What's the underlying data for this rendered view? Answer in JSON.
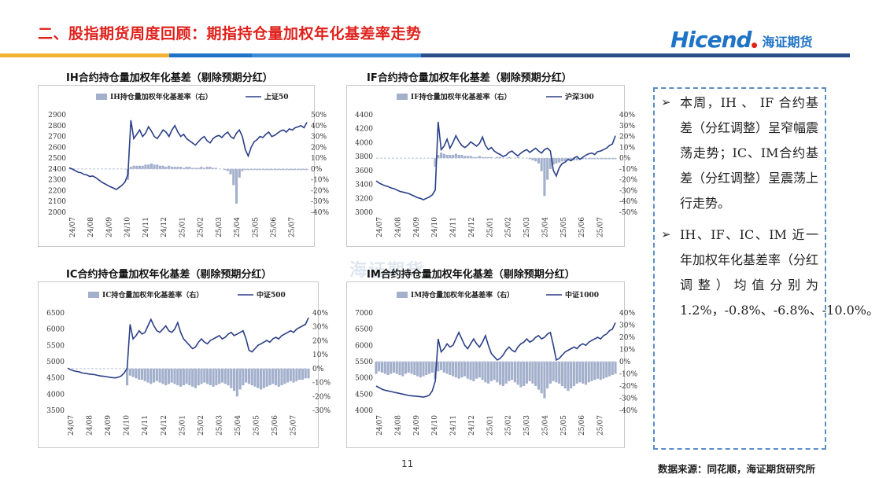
{
  "header": {
    "title": "二、股指期货周度回顾：期指持仓量加权年化基差率走势",
    "logo_text": "Hicend",
    "logo_cn": "海证期货",
    "bar_colors": [
      "#f2b233",
      "#1f73c7",
      "#1f73c7",
      "#2a4f8a"
    ]
  },
  "watermark": "海证期货",
  "notes": {
    "items": [
      "本周，IH 、 IF 合约基差（分红调整）呈窄幅震荡走势；IC、IM合约基差（分红调整）呈震荡上行走势。",
      "IH、IF、IC、IM 近一年加权年化基差率（分红调整）均值分别为 1.2%，-0.8%、-6.8%、-10.0%。"
    ],
    "bullet": "➢"
  },
  "footer": {
    "page": "11",
    "source": "数据来源：同花顺，海证期货研究所"
  },
  "chart_data": [
    {
      "type": "line",
      "panel_title": "IH合约持仓量加权年化基差（剔除预期分红）",
      "bar_legend": "IH持仓量加权年化基差率（右）",
      "line_legend": "上证50",
      "x": [
        "24/07",
        "24/08",
        "24/09",
        "24/10",
        "24/11",
        "24/12",
        "25/01",
        "25/02",
        "25/03",
        "25/04",
        "25/05",
        "25/06",
        "25/07"
      ],
      "ylim": [
        2000,
        2900
      ],
      "yticks": [
        "2000",
        "2100",
        "2200",
        "2300",
        "2400",
        "2500",
        "2600",
        "2700",
        "2800",
        "2900"
      ],
      "y2lim": [
        -40,
        50
      ],
      "y2ticks": [
        "-40%",
        "-30%",
        "-20%",
        "-10%",
        "0%",
        "10%",
        "20%",
        "30%",
        "40%",
        "50%"
      ],
      "line": [
        2410,
        2400,
        2385,
        2370,
        2365,
        2350,
        2345,
        2330,
        2335,
        2320,
        2300,
        2280,
        2265,
        2250,
        2235,
        2225,
        2210,
        2230,
        2250,
        2280,
        2350,
        2850,
        2680,
        2720,
        2760,
        2700,
        2730,
        2790,
        2750,
        2700,
        2680,
        2720,
        2760,
        2740,
        2700,
        2760,
        2800,
        2740,
        2700,
        2720,
        2680,
        2660,
        2640,
        2620,
        2650,
        2680,
        2700,
        2660,
        2640,
        2680,
        2700,
        2710,
        2690,
        2720,
        2740,
        2700,
        2680,
        2730,
        2760,
        2700,
        2580,
        2520,
        2600,
        2650,
        2670,
        2700,
        2690,
        2720,
        2740,
        2700,
        2710,
        2730,
        2750,
        2760,
        2740,
        2770,
        2760,
        2780,
        2790,
        2800,
        2780,
        2830
      ],
      "line_color": "#2a3f87",
      "bars": [
        0,
        0,
        0,
        0,
        0,
        0,
        0,
        0,
        0,
        0,
        0,
        0,
        0,
        0,
        0,
        0,
        0,
        0,
        0,
        0,
        -10,
        2,
        3,
        3,
        3,
        3,
        4,
        4,
        5,
        4,
        4,
        3,
        3,
        2,
        3,
        2,
        2,
        2,
        2,
        1,
        2,
        2,
        1,
        1,
        1,
        2,
        1,
        2,
        2,
        1,
        1,
        0,
        0,
        -1,
        -2,
        -5,
        -15,
        -32,
        -8,
        -2,
        -1,
        -1,
        -1,
        -1,
        -1,
        -1,
        -1,
        -1,
        -1,
        -1,
        -1,
        -1,
        -1,
        -1,
        -1,
        -1,
        -1,
        -1,
        -1,
        -1,
        -1,
        -1
      ],
      "bar_color": "#a3b0cc"
    },
    {
      "type": "line",
      "panel_title": "IF合约持仓量加权年化基差（剔除预期分红）",
      "bar_legend": "IF持仓量加权年化基差率（右）",
      "line_legend": "沪深300",
      "x": [
        "24/07",
        "24/08",
        "24/09",
        "24/10",
        "24/11",
        "24/12",
        "25/01",
        "25/02",
        "25/03",
        "25/04",
        "25/05",
        "25/06",
        "25/07"
      ],
      "ylim": [
        3000,
        4400
      ],
      "yticks": [
        "3000",
        "3200",
        "3400",
        "3600",
        "3800",
        "4000",
        "4200",
        "4400"
      ],
      "y2lim": [
        -50,
        40
      ],
      "y2ticks": [
        "-50%",
        "-40%",
        "-30%",
        "-20%",
        "-10%",
        "0%",
        "10%",
        "20%",
        "30%",
        "40%"
      ],
      "line": [
        3450,
        3420,
        3400,
        3380,
        3370,
        3350,
        3340,
        3320,
        3300,
        3290,
        3280,
        3270,
        3250,
        3230,
        3210,
        3200,
        3180,
        3200,
        3220,
        3250,
        3320,
        4300,
        3900,
        3950,
        4050,
        3920,
        4000,
        4100,
        4020,
        3960,
        3930,
        3960,
        4010,
        3980,
        3950,
        3990,
        4080,
        3960,
        3900,
        3930,
        3880,
        3850,
        3830,
        3800,
        3820,
        3860,
        3880,
        3840,
        3810,
        3850,
        3880,
        3900,
        3860,
        3890,
        3920,
        3880,
        3850,
        3900,
        3920,
        3880,
        3600,
        3520,
        3640,
        3700,
        3720,
        3760,
        3740,
        3780,
        3800,
        3760,
        3790,
        3820,
        3840,
        3850,
        3830,
        3870,
        3880,
        3900,
        3920,
        3960,
        3980,
        4100
      ],
      "line_color": "#2a3f87",
      "bars": [
        0,
        0,
        0,
        0,
        0,
        0,
        0,
        0,
        0,
        0,
        0,
        0,
        0,
        0,
        0,
        0,
        0,
        0,
        0,
        0,
        -8,
        3,
        5,
        4,
        3,
        3,
        3,
        4,
        3,
        3,
        2,
        2,
        2,
        1,
        1,
        2,
        1,
        1,
        1,
        1,
        0,
        1,
        1,
        0,
        0,
        1,
        0,
        0,
        1,
        0,
        0,
        0,
        -1,
        -2,
        -3,
        -5,
        -12,
        -35,
        -20,
        -10,
        -6,
        -5,
        -4,
        -3,
        -3,
        -2,
        -2,
        -2,
        -2,
        -1,
        -1,
        -1,
        -1,
        -1,
        -1,
        -1,
        -1,
        -1,
        -1,
        -1,
        -1,
        -1
      ],
      "bar_color": "#a3b0cc"
    },
    {
      "type": "line",
      "panel_title": "IC合约持仓量加权年化基差（剔除预期分红）",
      "bar_legend": "IC持仓量加权年化基差率（右）",
      "line_legend": "中证500",
      "x": [
        "24/07",
        "24/08",
        "24/09",
        "24/10",
        "24/11",
        "24/12",
        "25/01",
        "25/02",
        "25/03",
        "25/04",
        "25/05",
        "25/06",
        "25/07"
      ],
      "ylim": [
        3500,
        6500
      ],
      "yticks": [
        "3500",
        "4000",
        "4500",
        "5000",
        "5500",
        "6000",
        "6500"
      ],
      "y2lim": [
        -30,
        40
      ],
      "y2ticks": [
        "-30%",
        "-20%",
        "-10%",
        "0%",
        "10%",
        "20%",
        "30%",
        "40%"
      ],
      "line": [
        4800,
        4750,
        4720,
        4700,
        4680,
        4650,
        4640,
        4620,
        4610,
        4600,
        4580,
        4560,
        4550,
        4540,
        4520,
        4510,
        4500,
        4520,
        4560,
        4650,
        4800,
        6150,
        5700,
        5800,
        5950,
        5850,
        5900,
        6100,
        6300,
        6100,
        5950,
        5900,
        6000,
        6100,
        5950,
        5900,
        6000,
        6200,
        5900,
        5700,
        5600,
        5500,
        5400,
        5450,
        5600,
        5700,
        5600,
        5550,
        5650,
        5700,
        5750,
        5800,
        5700,
        5750,
        5850,
        5900,
        5800,
        5850,
        5900,
        5950,
        5700,
        5350,
        5300,
        5400,
        5500,
        5550,
        5600,
        5650,
        5600,
        5700,
        5750,
        5700,
        5800,
        5850,
        5900,
        5950,
        5900,
        6000,
        6050,
        6100,
        6150,
        6350
      ],
      "line_color": "#2a3f87",
      "bars": [
        0,
        0,
        0,
        0,
        0,
        0,
        0,
        0,
        0,
        0,
        0,
        0,
        0,
        0,
        0,
        0,
        0,
        0,
        0,
        0,
        -12,
        -5,
        -6,
        -7,
        -8,
        -8,
        -9,
        -10,
        -11,
        -10,
        -9,
        -10,
        -11,
        -12,
        -11,
        -10,
        -11,
        -12,
        -13,
        -12,
        -11,
        -12,
        -13,
        -14,
        -12,
        -11,
        -10,
        -11,
        -12,
        -13,
        -12,
        -11,
        -10,
        -11,
        -12,
        -14,
        -16,
        -20,
        -15,
        -12,
        -10,
        -11,
        -12,
        -13,
        -14,
        -15,
        -14,
        -13,
        -12,
        -11,
        -12,
        -13,
        -12,
        -11,
        -10,
        -9,
        -10,
        -9,
        -8,
        -8,
        -7,
        -7
      ],
      "bar_color": "#a3b0cc"
    },
    {
      "type": "line",
      "panel_title": "IM合约持仓量加权年化基差（剔除预期分红）",
      "bar_legend": "IM持仓量加权年化基差率（右）",
      "line_legend": "中证1000",
      "x": [
        "24/07",
        "24/08",
        "24/09",
        "24/10",
        "24/11",
        "24/12",
        "25/01",
        "25/02",
        "25/03",
        "25/04",
        "25/05",
        "25/06",
        "25/07"
      ],
      "ylim": [
        4000,
        7000
      ],
      "yticks": [
        "4000",
        "4500",
        "5000",
        "5500",
        "6000",
        "6500",
        "7000"
      ],
      "y2lim": [
        -40,
        40
      ],
      "y2ticks": [
        "-40%",
        "-30%",
        "-20%",
        "-10%",
        "0%",
        "10%",
        "20%",
        "30%",
        "40%"
      ],
      "line": [
        4750,
        4700,
        4650,
        4620,
        4600,
        4580,
        4560,
        4540,
        4520,
        4500,
        4480,
        4460,
        4450,
        4440,
        4430,
        4420,
        4410,
        4430,
        4470,
        4600,
        4900,
        6200,
        5800,
        5900,
        6050,
        5950,
        6000,
        6200,
        6400,
        6200,
        6000,
        5900,
        6050,
        6200,
        6050,
        5950,
        6100,
        6300,
        6000,
        5750,
        5650,
        5550,
        5600,
        5700,
        5850,
        5950,
        5850,
        5800,
        5950,
        6050,
        6100,
        6200,
        6100,
        6150,
        6250,
        6300,
        6200,
        6250,
        6350,
        6400,
        6000,
        5550,
        5600,
        5700,
        5800,
        5850,
        5900,
        5950,
        5900,
        6000,
        6050,
        6000,
        6100,
        6150,
        6200,
        6250,
        6200,
        6300,
        6350,
        6450,
        6500,
        6700
      ],
      "line_color": "#2a3f87",
      "bars": [
        -10,
        -8,
        -9,
        -10,
        -11,
        -10,
        -9,
        -10,
        -11,
        -12,
        -10,
        -9,
        -10,
        -11,
        -12,
        -13,
        -12,
        -11,
        -10,
        -9,
        -14,
        -8,
        -7,
        -9,
        -10,
        -11,
        -12,
        -13,
        -14,
        -13,
        -12,
        -14,
        -15,
        -16,
        -14,
        -13,
        -15,
        -17,
        -18,
        -16,
        -15,
        -17,
        -19,
        -20,
        -18,
        -16,
        -15,
        -17,
        -19,
        -21,
        -20,
        -18,
        -16,
        -18,
        -20,
        -23,
        -26,
        -30,
        -22,
        -18,
        -16,
        -17,
        -18,
        -20,
        -22,
        -24,
        -22,
        -20,
        -18,
        -17,
        -18,
        -19,
        -17,
        -16,
        -15,
        -14,
        -15,
        -14,
        -13,
        -12,
        -11,
        -10
      ],
      "bar_color": "#a3b0cc"
    }
  ]
}
